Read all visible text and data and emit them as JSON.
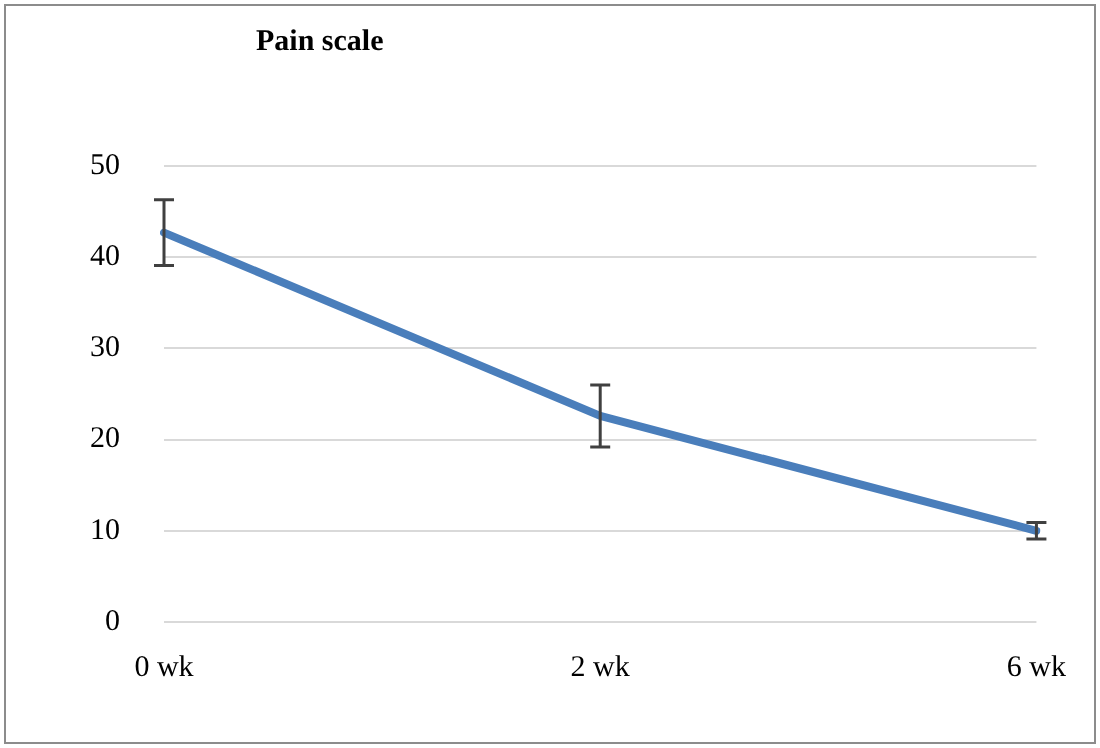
{
  "chart_data": {
    "type": "line",
    "title": "Pain scale",
    "categories": [
      "0 wk",
      "2 wk",
      "6 wk"
    ],
    "series": [
      {
        "color": "#4a7ebb",
        "values": [
          42.7,
          22.6,
          10.0
        ],
        "errors": [
          3.6,
          3.4,
          0.9
        ]
      }
    ],
    "ylim": [
      0,
      50
    ],
    "yticks": [
      0,
      10,
      20,
      30,
      40,
      50
    ],
    "grid": "y",
    "legend": false,
    "marker": "none"
  }
}
